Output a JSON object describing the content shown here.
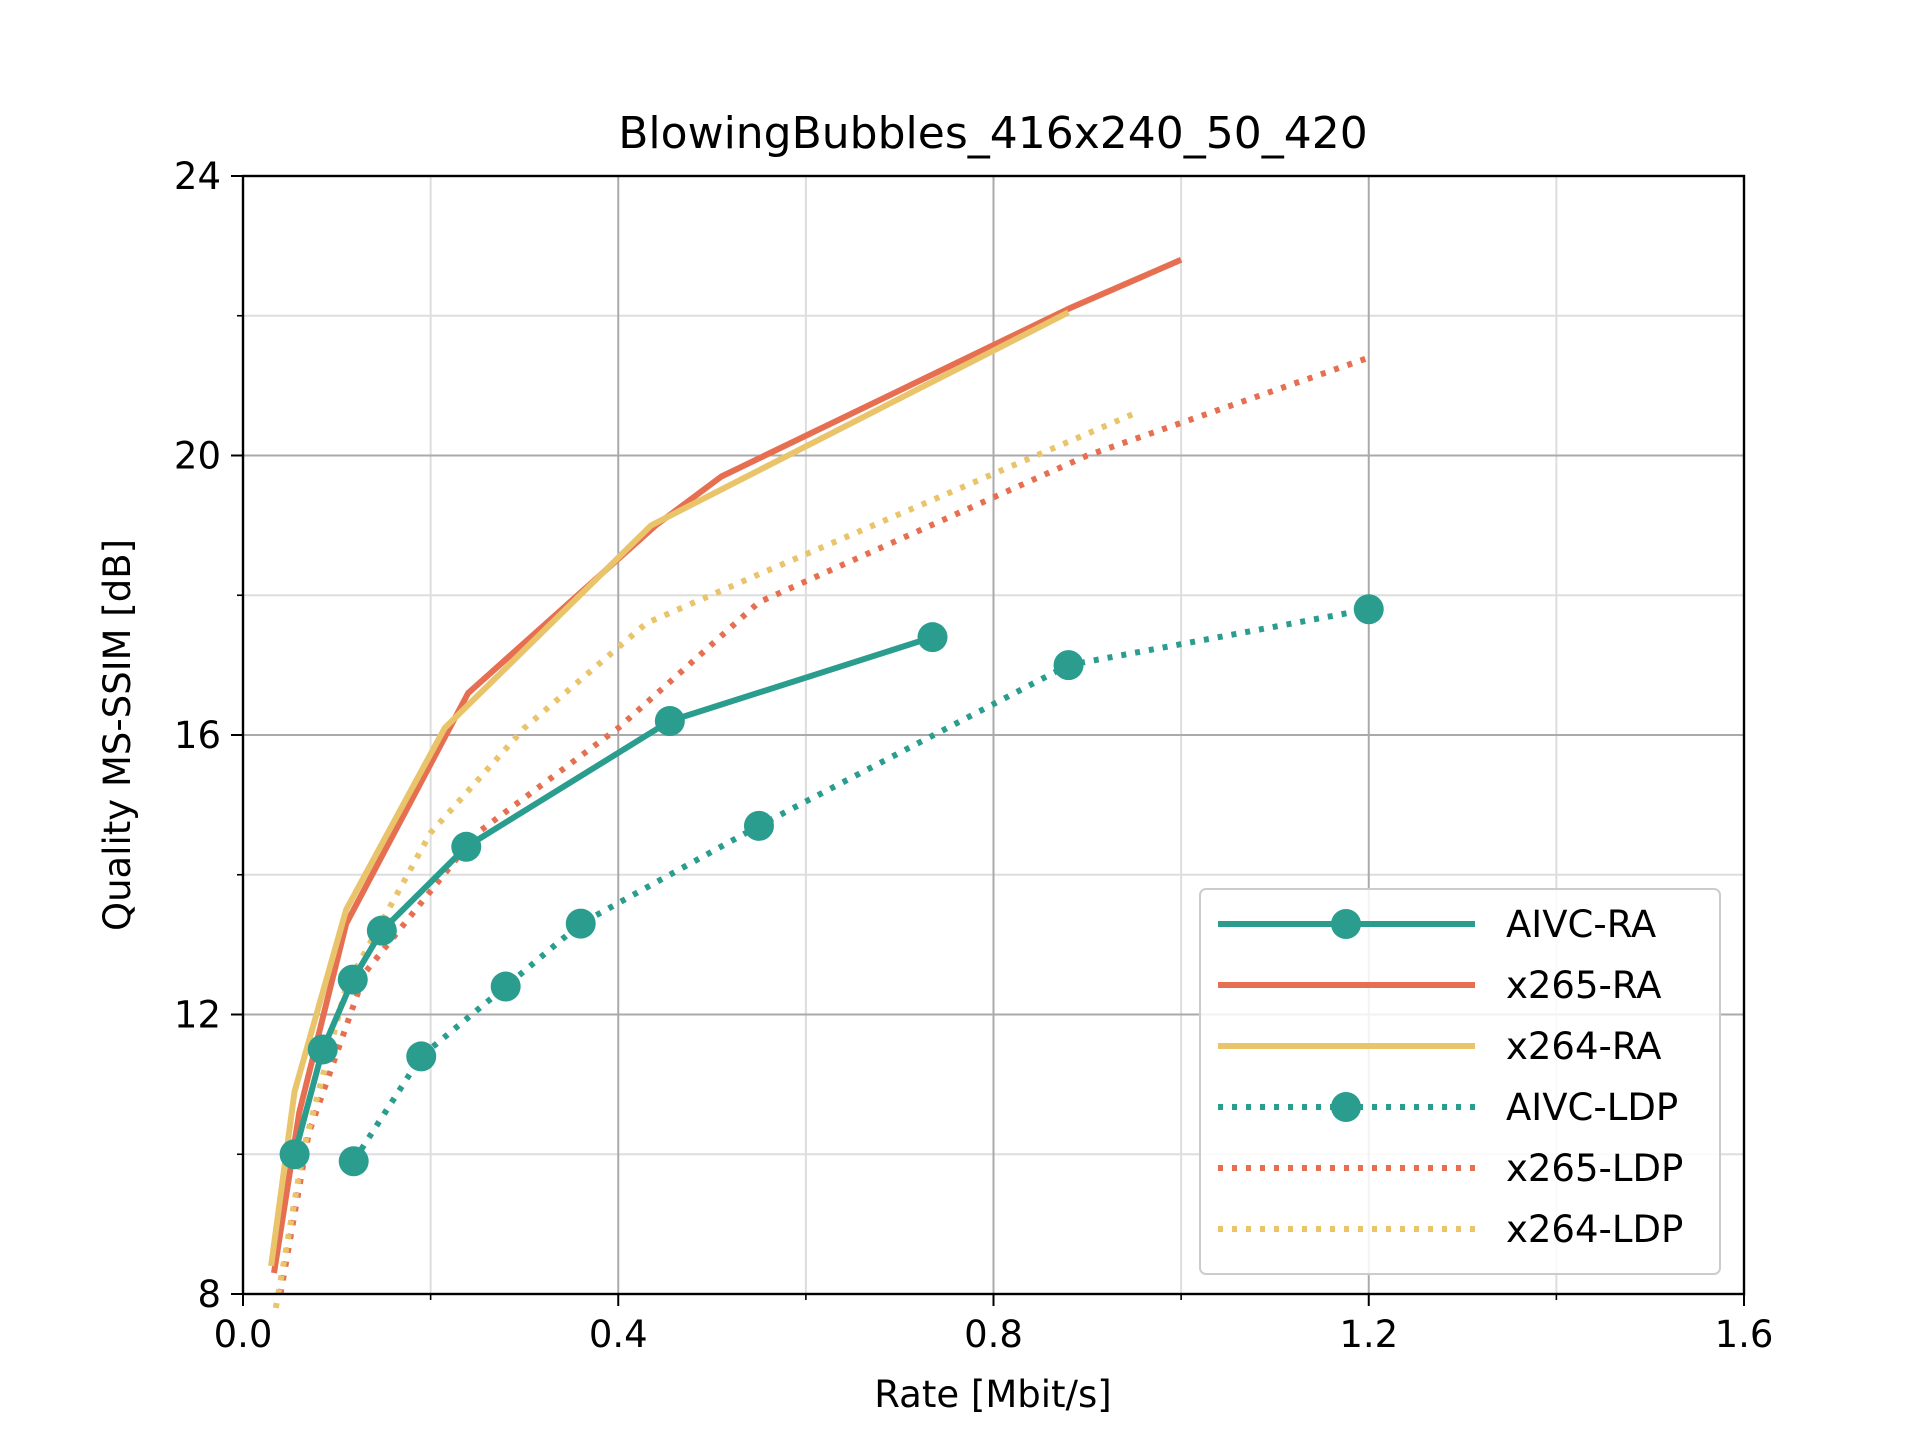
{
  "chart_data": {
    "type": "line",
    "title": "BlowingBubbles_416x240_50_420",
    "xlabel": "Rate [Mbit/s]",
    "ylabel": "Quality MS-SSIM [dB]",
    "xlim": [
      0.0,
      1.6
    ],
    "ylim": [
      8,
      24
    ],
    "xticks": [
      "0.0",
      "0.4",
      "0.8",
      "1.2",
      "1.6"
    ],
    "yticks": [
      "8",
      "12",
      "16",
      "20",
      "24"
    ],
    "grid": true,
    "legend_position": "lower-right",
    "series": [
      {
        "name": "AIVC-RA",
        "color": "#2a9d8f",
        "linestyle": "solid",
        "marker": "circle",
        "x": [
          0.055,
          0.085,
          0.117,
          0.148,
          0.238,
          0.455,
          0.735
        ],
        "y": [
          10.0,
          11.5,
          12.5,
          13.2,
          14.4,
          16.2,
          17.4
        ]
      },
      {
        "name": "x265-RA",
        "color": "#e76f51",
        "linestyle": "solid",
        "marker": "none",
        "x": [
          0.033,
          0.06,
          0.11,
          0.24,
          0.44,
          0.51,
          0.88,
          1.0
        ],
        "y": [
          8.3,
          10.6,
          13.3,
          16.6,
          19.0,
          19.7,
          22.1,
          22.8
        ]
      },
      {
        "name": "x264-RA",
        "color": "#e9c46a",
        "linestyle": "solid",
        "marker": "none",
        "x": [
          0.03,
          0.055,
          0.11,
          0.215,
          0.435,
          0.88
        ],
        "y": [
          8.4,
          10.9,
          13.5,
          16.1,
          19.0,
          22.05
        ]
      },
      {
        "name": "AIVC-LDP",
        "color": "#2a9d8f",
        "linestyle": "dotted",
        "marker": "circle",
        "x": [
          0.118,
          0.19,
          0.28,
          0.36,
          0.55,
          0.88,
          1.2
        ],
        "y": [
          9.9,
          11.4,
          12.4,
          13.3,
          14.7,
          17.0,
          17.8
        ]
      },
      {
        "name": "x265-LDP",
        "color": "#e76f51",
        "linestyle": "dotted",
        "marker": "none",
        "x": [
          0.04,
          0.07,
          0.13,
          0.25,
          0.4,
          0.55,
          0.9,
          1.2
        ],
        "y": [
          8.0,
          10.3,
          12.6,
          14.6,
          16.1,
          17.9,
          20.0,
          21.4
        ]
      },
      {
        "name": "x264-LDP",
        "color": "#e9c46a",
        "linestyle": "dotted",
        "marker": "none",
        "x": [
          0.035,
          0.065,
          0.11,
          0.2,
          0.3,
          0.43,
          0.55,
          0.95
        ],
        "y": [
          7.8,
          10.1,
          12.4,
          14.6,
          16.1,
          17.6,
          18.3,
          20.6
        ]
      }
    ]
  }
}
